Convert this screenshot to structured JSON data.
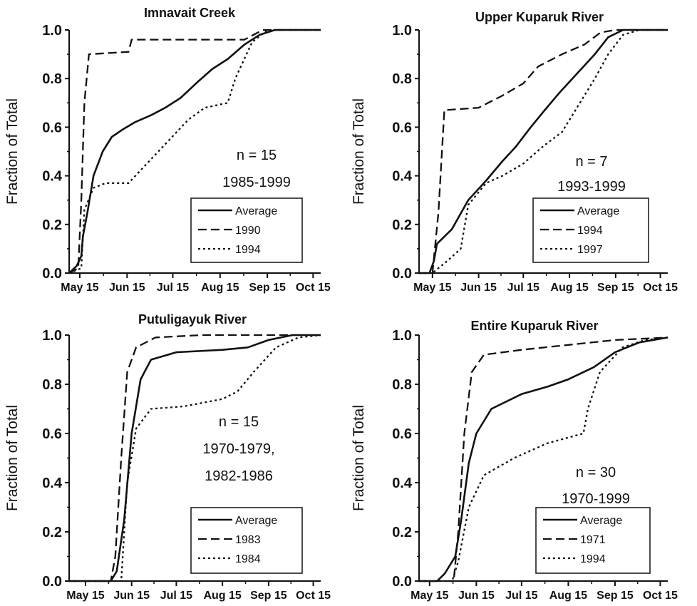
{
  "chart_data": [
    {
      "type": "line",
      "title": "Imnavait Creek",
      "ylabel": "Fraction of Total",
      "xlabel": "",
      "ylim": [
        0,
        1.0
      ],
      "xlim": [
        "May 8",
        "Oct 20"
      ],
      "xticks": [
        "May 15",
        "Jun 15",
        "Jul 15",
        "Aug 15",
        "Sep 15",
        "Oct 15"
      ],
      "yticks": [
        "0.0",
        "0.2",
        "0.4",
        "0.6",
        "0.8",
        "1.0"
      ],
      "annotation": [
        "n = 15",
        "1985-1999"
      ],
      "legend_position": "bottom-right",
      "series": [
        {
          "name": "Average",
          "style": "solid",
          "points": [
            [
              "May 8",
              0.0
            ],
            [
              "May 13",
              0.03
            ],
            [
              "May 16",
              0.07
            ],
            [
              "May 17",
              0.15
            ],
            [
              "May 20",
              0.25
            ],
            [
              "May 24",
              0.4
            ],
            [
              "May 30",
              0.5
            ],
            [
              "Jun 5",
              0.56
            ],
            [
              "Jun 12",
              0.59
            ],
            [
              "Jun 20",
              0.62
            ],
            [
              "Jul 1",
              0.65
            ],
            [
              "Jul 10",
              0.68
            ],
            [
              "Jul 20",
              0.72
            ],
            [
              "Aug 1",
              0.79
            ],
            [
              "Aug 10",
              0.84
            ],
            [
              "Aug 20",
              0.88
            ],
            [
              "Aug 31",
              0.94
            ],
            [
              "Sep 10",
              0.98
            ],
            [
              "Sep 20",
              1.0
            ],
            [
              "Oct 20",
              1.0
            ]
          ]
        },
        {
          "name": "1990",
          "style": "dashed",
          "points": [
            [
              "May 8",
              0.0
            ],
            [
              "May 14",
              0.02
            ],
            [
              "May 16",
              0.3
            ],
            [
              "May 18",
              0.7
            ],
            [
              "May 21",
              0.9
            ],
            [
              "Jun 16",
              0.91
            ],
            [
              "Jun 18",
              0.96
            ],
            [
              "Aug 31",
              0.96
            ],
            [
              "Sep 12",
              1.0
            ],
            [
              "Oct 20",
              1.0
            ]
          ]
        },
        {
          "name": "1994",
          "style": "dotted",
          "points": [
            [
              "May 8",
              0.0
            ],
            [
              "May 16",
              0.02
            ],
            [
              "May 18",
              0.26
            ],
            [
              "May 24",
              0.35
            ],
            [
              "Jun 1",
              0.37
            ],
            [
              "Jun 16",
              0.37
            ],
            [
              "Jun 28",
              0.45
            ],
            [
              "Jul 10",
              0.53
            ],
            [
              "Jul 25",
              0.63
            ],
            [
              "Aug 5",
              0.68
            ],
            [
              "Aug 20",
              0.7
            ],
            [
              "Aug 25",
              0.8
            ],
            [
              "Sep 5",
              0.95
            ],
            [
              "Sep 15",
              1.0
            ],
            [
              "Oct 20",
              1.0
            ]
          ]
        }
      ]
    },
    {
      "type": "line",
      "title": "Upper Kuparuk River",
      "ylabel": "Fraction of Total",
      "xlabel": "",
      "ylim": [
        0,
        1.0
      ],
      "xlim": [
        "May 6",
        "Oct 20"
      ],
      "xticks": [
        "May 15",
        "Jun 15",
        "Jul 15",
        "Aug 15",
        "Sep 15",
        "Oct 15"
      ],
      "yticks": [
        "0.0",
        "0.2",
        "0.4",
        "0.6",
        "0.8",
        "1.0"
      ],
      "annotation": [
        "n = 7",
        "1993-1999"
      ],
      "legend_position": "bottom-right",
      "series": [
        {
          "name": "Average",
          "style": "solid",
          "points": [
            [
              "May 6",
              0.0
            ],
            [
              "May 13",
              0.0
            ],
            [
              "May 16",
              0.05
            ],
            [
              "May 18",
              0.12
            ],
            [
              "May 28",
              0.18
            ],
            [
              "Jun 8",
              0.3
            ],
            [
              "Jun 20",
              0.38
            ],
            [
              "Jul 1",
              0.46
            ],
            [
              "Jul 10",
              0.52
            ],
            [
              "Jul 20",
              0.6
            ],
            [
              "Jul 28",
              0.66
            ],
            [
              "Aug 8",
              0.74
            ],
            [
              "Aug 20",
              0.82
            ],
            [
              "Sep 1",
              0.9
            ],
            [
              "Sep 10",
              0.97
            ],
            [
              "Sep 20",
              1.0
            ],
            [
              "Oct 20",
              1.0
            ]
          ]
        },
        {
          "name": "1994",
          "style": "dashed",
          "points": [
            [
              "May 6",
              0.0
            ],
            [
              "May 15",
              0.0
            ],
            [
              "May 19",
              0.25
            ],
            [
              "May 23",
              0.67
            ],
            [
              "Jun 15",
              0.68
            ],
            [
              "Jul 1",
              0.73
            ],
            [
              "Jul 15",
              0.78
            ],
            [
              "Jul 25",
              0.85
            ],
            [
              "Aug 10",
              0.9
            ],
            [
              "Aug 25",
              0.94
            ],
            [
              "Sep 5",
              0.99
            ],
            [
              "Sep 15",
              1.0
            ],
            [
              "Oct 20",
              1.0
            ]
          ]
        },
        {
          "name": "1997",
          "style": "dotted",
          "points": [
            [
              "May 6",
              0.0
            ],
            [
              "May 15",
              0.0
            ],
            [
              "May 25",
              0.05
            ],
            [
              "Jun 3",
              0.1
            ],
            [
              "Jun 8",
              0.28
            ],
            [
              "Jun 20",
              0.37
            ],
            [
              "Jul 1",
              0.4
            ],
            [
              "Jul 15",
              0.45
            ],
            [
              "Jul 28",
              0.52
            ],
            [
              "Aug 10",
              0.58
            ],
            [
              "Aug 20",
              0.68
            ],
            [
              "Sep 1",
              0.8
            ],
            [
              "Sep 10",
              0.9
            ],
            [
              "Sep 20",
              0.98
            ],
            [
              "Oct 1",
              1.0
            ],
            [
              "Oct 20",
              1.0
            ]
          ]
        }
      ]
    },
    {
      "type": "line",
      "title": "Putuligayuk River",
      "ylabel": "Fraction of Total",
      "xlabel": "",
      "ylim": [
        0,
        1.0
      ],
      "xlim": [
        "May 4",
        "Oct 20"
      ],
      "xticks": [
        "May 15",
        "Jun 15",
        "Jul 15",
        "Aug 15",
        "Sep 15",
        "Oct 15"
      ],
      "yticks": [
        "0.0",
        "0.2",
        "0.4",
        "0.6",
        "0.8",
        "1.0"
      ],
      "annotation": [
        "n = 15",
        "1970-1979,",
        "1982-1986"
      ],
      "legend_position": "bottom-right",
      "series": [
        {
          "name": "Average",
          "style": "solid",
          "points": [
            [
              "May 4",
              0.0
            ],
            [
              "Jun 1",
              0.0
            ],
            [
              "Jun 5",
              0.04
            ],
            [
              "Jun 10",
              0.25
            ],
            [
              "Jun 15",
              0.6
            ],
            [
              "Jun 21",
              0.82
            ],
            [
              "Jun 28",
              0.9
            ],
            [
              "Jul 15",
              0.93
            ],
            [
              "Aug 15",
              0.94
            ],
            [
              "Sep 1",
              0.95
            ],
            [
              "Sep 15",
              0.98
            ],
            [
              "Oct 1",
              1.0
            ],
            [
              "Oct 20",
              1.0
            ]
          ]
        },
        {
          "name": "1983",
          "style": "dashed",
          "points": [
            [
              "May 4",
              0.0
            ],
            [
              "Jun 1",
              0.0
            ],
            [
              "Jun 4",
              0.1
            ],
            [
              "Jun 8",
              0.5
            ],
            [
              "Jun 12",
              0.85
            ],
            [
              "Jun 18",
              0.95
            ],
            [
              "Jul 1",
              0.99
            ],
            [
              "Aug 1",
              1.0
            ],
            [
              "Oct 20",
              1.0
            ]
          ]
        },
        {
          "name": "1984",
          "style": "dotted",
          "points": [
            [
              "May 4",
              0.0
            ],
            [
              "Jun 8",
              0.0
            ],
            [
              "Jun 12",
              0.4
            ],
            [
              "Jun 18",
              0.62
            ],
            [
              "Jun 28",
              0.7
            ],
            [
              "Jul 20",
              0.71
            ],
            [
              "Aug 15",
              0.74
            ],
            [
              "Aug 25",
              0.77
            ],
            [
              "Sep 5",
              0.85
            ],
            [
              "Sep 20",
              0.95
            ],
            [
              "Oct 5",
              0.99
            ],
            [
              "Oct 20",
              1.0
            ]
          ]
        }
      ]
    },
    {
      "type": "line",
      "title": "Entire Kuparuk River",
      "ylabel": "Fraction of Total",
      "xlabel": "",
      "ylim": [
        0,
        1.0
      ],
      "xlim": [
        "May 8",
        "Oct 20"
      ],
      "xticks": [
        "May 15",
        "Jun 15",
        "Jul 15",
        "Aug 15",
        "Sep 15",
        "Oct 15"
      ],
      "yticks": [
        "0.0",
        "0.2",
        "0.4",
        "0.6",
        "0.8",
        "1.0"
      ],
      "annotation": [
        "n = 30",
        "1970-1999"
      ],
      "legend_position": "bottom-right",
      "series": [
        {
          "name": "Average",
          "style": "solid",
          "points": [
            [
              "May 8",
              0.0
            ],
            [
              "May 20",
              0.0
            ],
            [
              "May 25",
              0.03
            ],
            [
              "Jun 1",
              0.1
            ],
            [
              "Jun 5",
              0.25
            ],
            [
              "Jun 10",
              0.48
            ],
            [
              "Jun 15",
              0.6
            ],
            [
              "Jun 25",
              0.7
            ],
            [
              "Jul 15",
              0.76
            ],
            [
              "Aug 1",
              0.79
            ],
            [
              "Aug 15",
              0.82
            ],
            [
              "Sep 1",
              0.87
            ],
            [
              "Sep 15",
              0.93
            ],
            [
              "Oct 1",
              0.97
            ],
            [
              "Oct 20",
              0.99
            ]
          ]
        },
        {
          "name": "1971",
          "style": "dashed",
          "points": [
            [
              "May 8",
              0.0
            ],
            [
              "May 31",
              0.0
            ],
            [
              "Jun 3",
              0.2
            ],
            [
              "Jun 7",
              0.6
            ],
            [
              "Jun 12",
              0.85
            ],
            [
              "Jun 20",
              0.92
            ],
            [
              "Jul 15",
              0.94
            ],
            [
              "Aug 15",
              0.96
            ],
            [
              "Sep 15",
              0.98
            ],
            [
              "Oct 20",
              0.99
            ]
          ]
        },
        {
          "name": "1994",
          "style": "dotted",
          "points": [
            [
              "May 8",
              0.0
            ],
            [
              "May 30",
              0.0
            ],
            [
              "Jun 3",
              0.08
            ],
            [
              "Jun 10",
              0.3
            ],
            [
              "Jun 20",
              0.43
            ],
            [
              "Jul 10",
              0.5
            ],
            [
              "Aug 1",
              0.56
            ],
            [
              "Aug 25",
              0.6
            ],
            [
              "Aug 28",
              0.7
            ],
            [
              "Sep 5",
              0.85
            ],
            [
              "Sep 20",
              0.95
            ],
            [
              "Oct 5",
              0.98
            ],
            [
              "Oct 20",
              0.99
            ]
          ]
        }
      ]
    }
  ]
}
